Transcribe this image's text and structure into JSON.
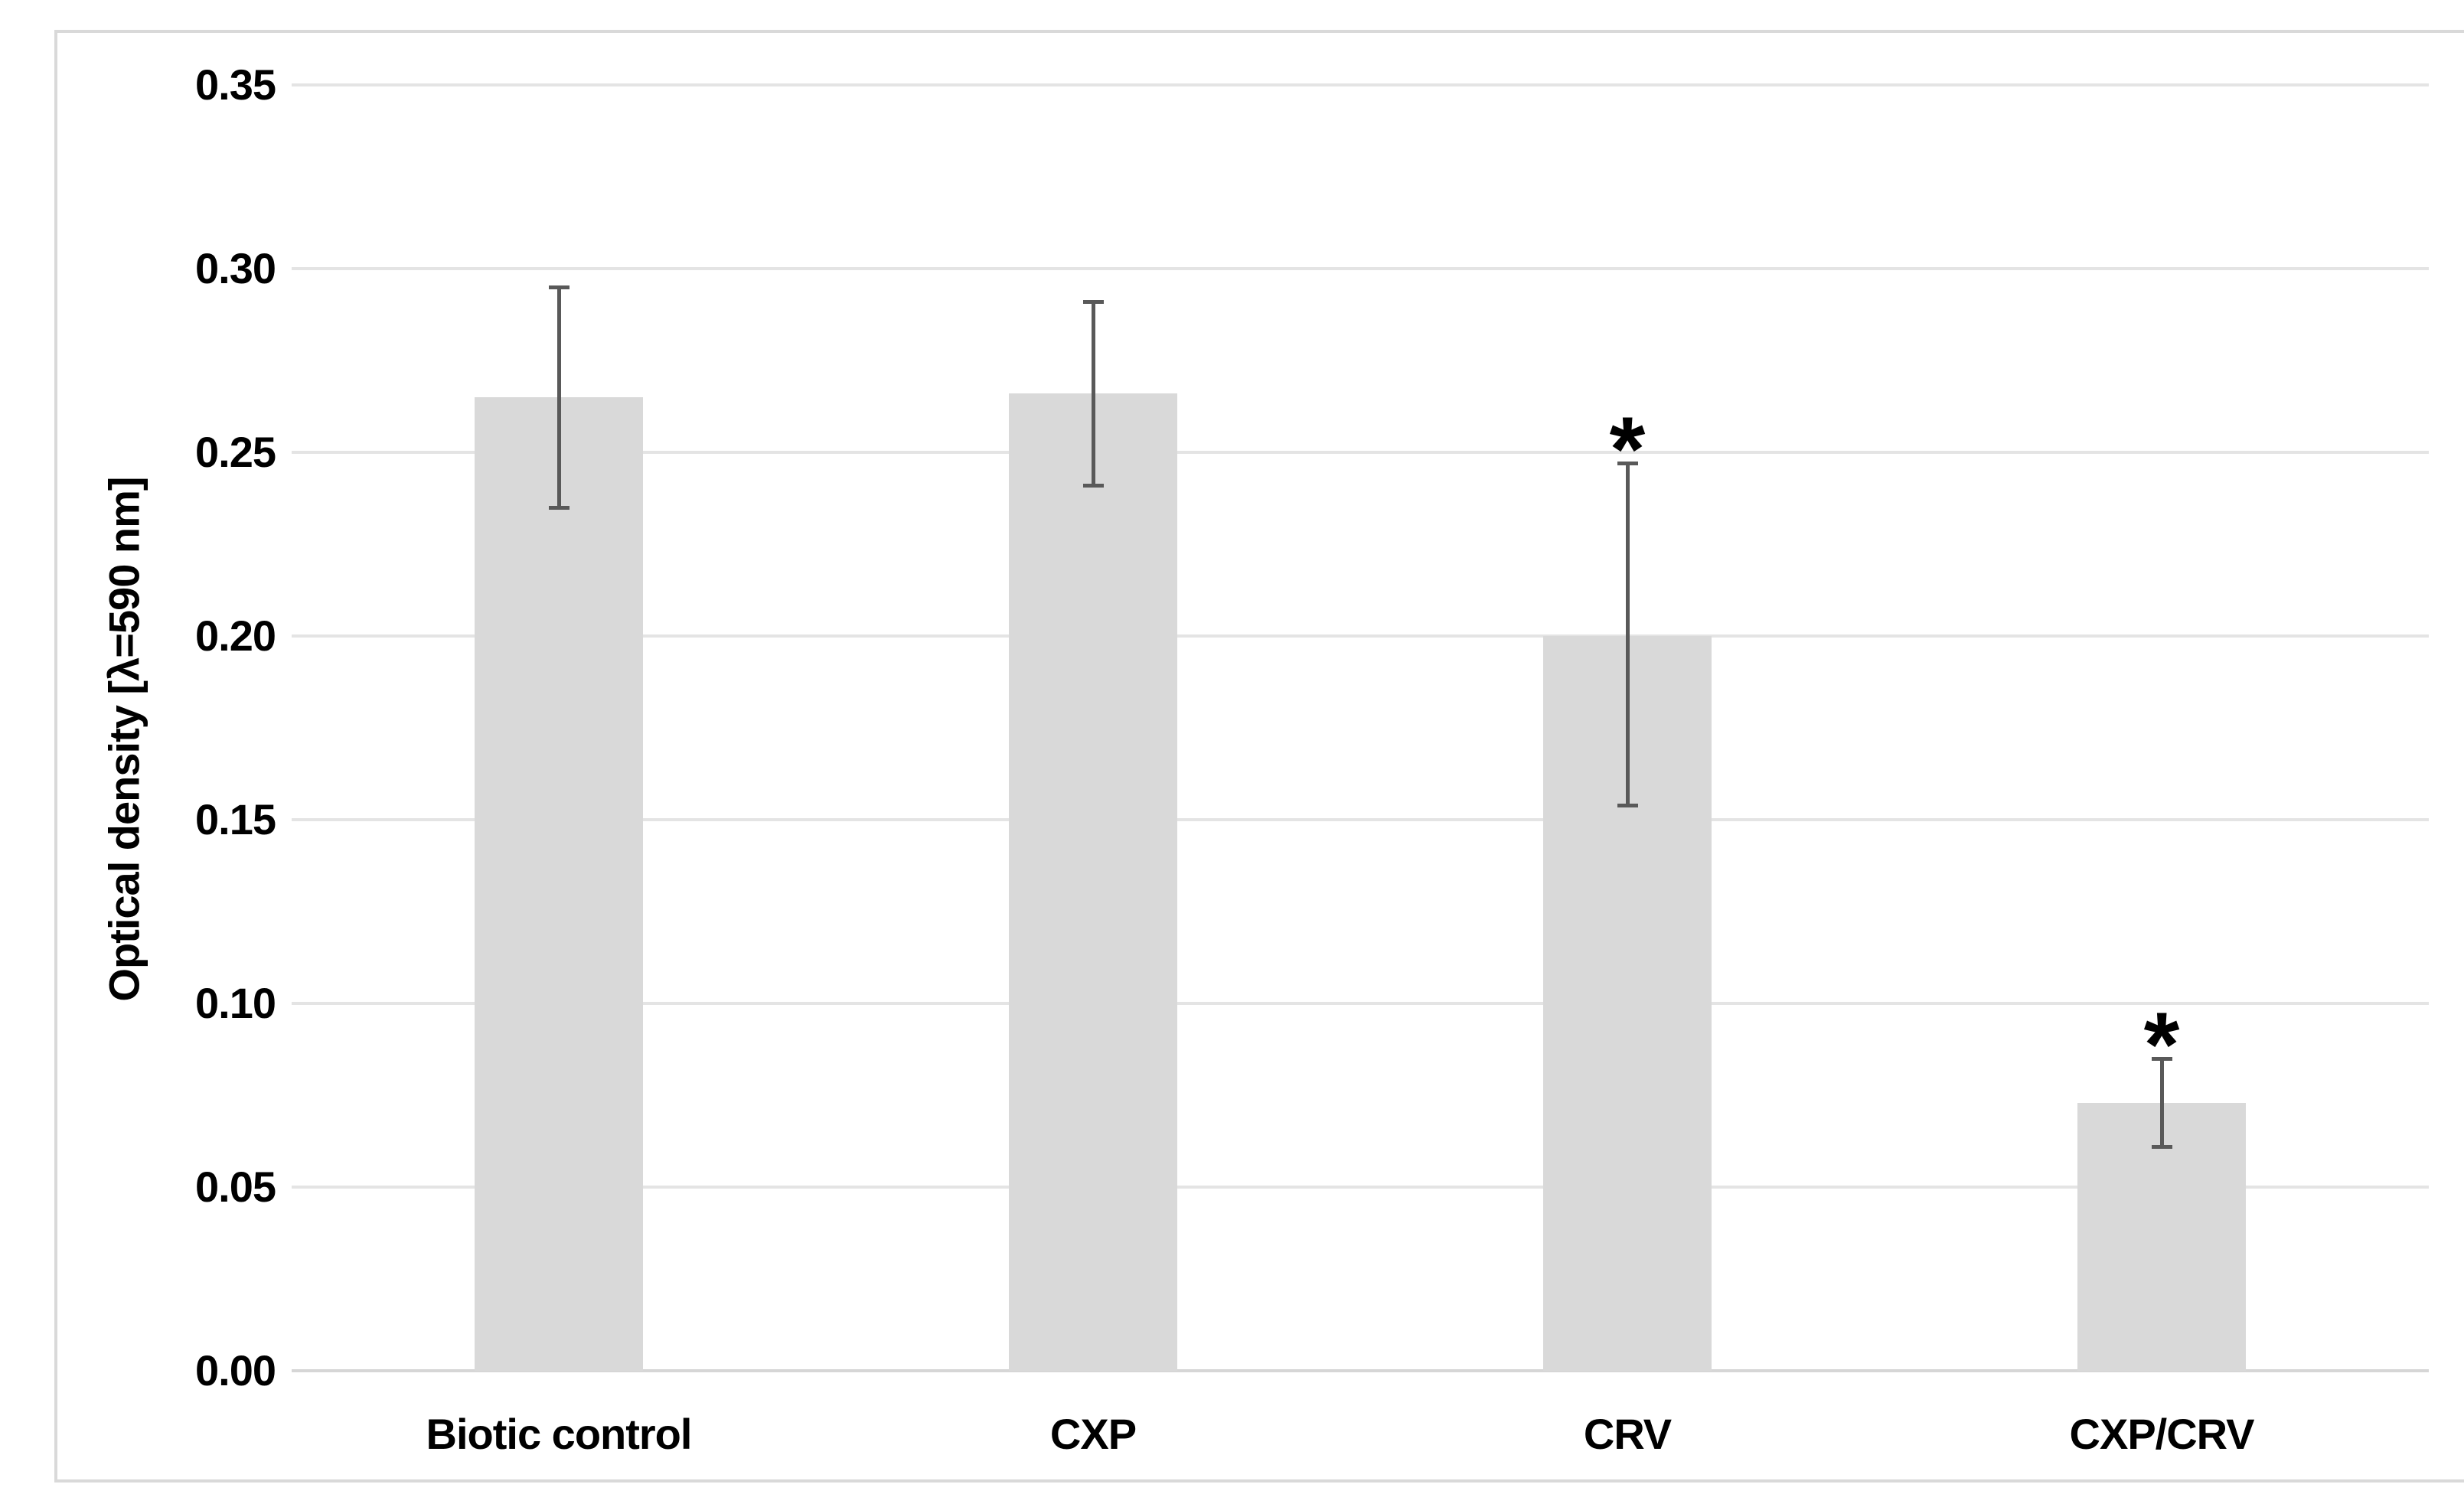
{
  "chart_data": {
    "type": "bar",
    "title": "",
    "categories": [
      "Biotic control",
      "CXP",
      "CRV",
      "CXP/CRV"
    ],
    "values": [
      0.265,
      0.266,
      0.2,
      0.073
    ],
    "error_low": [
      0.235,
      0.241,
      0.154,
      0.061
    ],
    "error_high": [
      0.295,
      0.291,
      0.247,
      0.085
    ],
    "significance": [
      "",
      "",
      "*",
      "*"
    ],
    "xlabel": "",
    "ylabel": "Optical density [λ=590 nm]",
    "ylim": [
      0.0,
      0.35
    ],
    "ytick_step": 0.05,
    "ytick_decimals": 2,
    "grid": true,
    "legend": false,
    "colors": {
      "background": "#FFFFFF",
      "bar_fill": "#D9D9D9",
      "error_bar": "#595959",
      "gridline": "#E4E4E4",
      "axis_line": "#D6D6D6",
      "frame_border": "#D9D9D9",
      "text": "#000000"
    }
  }
}
